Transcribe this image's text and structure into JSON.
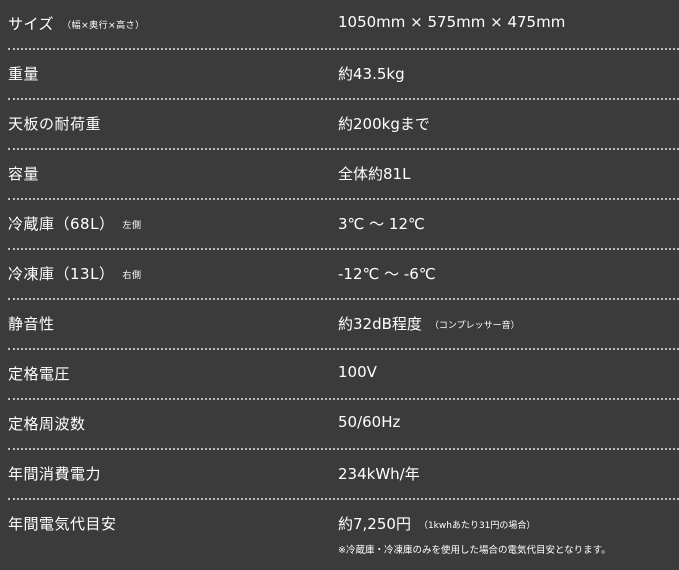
{
  "rows": [
    {
      "label": "サイズ",
      "label_note": "（幅×奥行×高さ）",
      "value": "1050mm × 575mm × 475mm"
    },
    {
      "label": "重量",
      "value": "約43.5kg"
    },
    {
      "label": "天板の耐荷重",
      "value": "約200kgまで"
    },
    {
      "label": "容量",
      "value": "全体約81L"
    },
    {
      "label": "冷蔵庫（68L）",
      "label_note": "左側",
      "value": "3℃ ～ 12℃"
    },
    {
      "label": "冷凍庫（13L）",
      "label_note": "右側",
      "value": "-12℃ ～ -6℃"
    },
    {
      "label": "静音性",
      "value": "約32dB程度",
      "value_note": "（コンプレッサー音）"
    },
    {
      "label": "定格電圧",
      "value": "100V"
    },
    {
      "label": "定格周波数",
      "value": "50/60Hz"
    },
    {
      "label": "年間消費電力",
      "value": "234kWh/年"
    },
    {
      "label": "年間電気代目安",
      "value": "約7,250円",
      "value_note": "（1kwhあたり31円の場合）",
      "footnote": "※冷蔵庫・冷凍庫のみを使用した場合の電気代目安となります。"
    }
  ]
}
